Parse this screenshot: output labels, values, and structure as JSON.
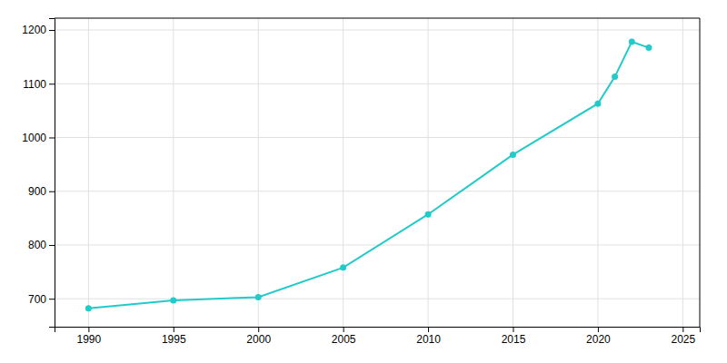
{
  "chart_data": {
    "type": "line",
    "x": [
      1990,
      1995,
      2000,
      2005,
      2010,
      2015,
      2020,
      2021,
      2022,
      2023
    ],
    "values": [
      682,
      697,
      703,
      758,
      857,
      968,
      1063,
      1113,
      1178,
      1167
    ],
    "color": "#22CACA",
    "marker": "circle",
    "xlim": [
      1988,
      2026
    ],
    "ylim": [
      648,
      1222
    ],
    "xticks": [
      1990,
      1995,
      2000,
      2005,
      2010,
      2015,
      2020,
      2025
    ],
    "yticks": [
      700,
      800,
      900,
      1000,
      1100,
      1200
    ],
    "grid": true
  }
}
